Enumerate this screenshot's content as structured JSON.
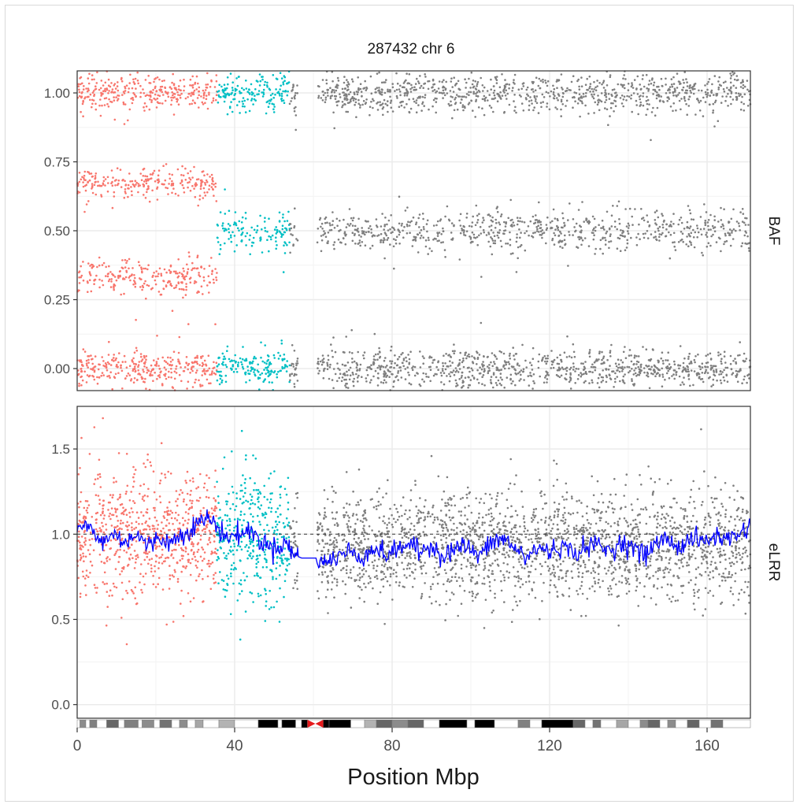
{
  "title": "287432 chr 6",
  "xlabel": "Position Mbp",
  "colors": {
    "segment_a": "#F8766D",
    "segment_b": "#00BFC4",
    "segment_c": "#7F7F7F",
    "smooth_line": "#0000FF",
    "centromere": "#E41A1C",
    "grid": "#EBEBEB",
    "panel_border": "#333333"
  },
  "chart_data": [
    {
      "type": "scatter",
      "strip_label": "BAF",
      "xlim": [
        0,
        171
      ],
      "ylim": [
        -0.08,
        1.08
      ],
      "x_ticks": [
        0,
        40,
        80,
        120,
        160
      ],
      "x_tick_labels": [
        "0",
        "40",
        "80",
        "120",
        "160"
      ],
      "y_ticks": [
        0.0,
        0.25,
        0.5,
        0.75,
        1.0
      ],
      "y_tick_labels": [
        "0.00",
        "0.25",
        "0.50",
        "0.75",
        "1.00"
      ],
      "grid": true,
      "gap": [
        56,
        61
      ],
      "series": [
        {
          "color_key": "segment_a",
          "x_range": [
            0,
            35.5
          ],
          "bands": [
            0.0,
            0.33,
            0.67,
            1.0
          ],
          "spread": 0.03
        },
        {
          "color_key": "segment_b",
          "x_range": [
            35.5,
            54
          ],
          "bands": [
            0.0,
            0.5,
            1.0
          ],
          "spread": 0.035
        },
        {
          "color_key": "segment_c",
          "x_range": [
            54,
            171
          ],
          "bands": [
            0.0,
            0.5,
            1.0
          ],
          "spread": 0.035
        }
      ]
    },
    {
      "type": "scatter",
      "strip_label": "eLRR",
      "xlim": [
        0,
        171
      ],
      "ylim": [
        -0.08,
        1.75
      ],
      "x_ticks": [
        0,
        40,
        80,
        120,
        160
      ],
      "x_tick_labels": [
        "0",
        "40",
        "80",
        "120",
        "160"
      ],
      "y_ticks": [
        0.0,
        0.5,
        1.0,
        1.5
      ],
      "y_tick_labels": [
        "0.0",
        "0.5",
        "1.0",
        "1.5"
      ],
      "grid": true,
      "reference_line": 1.0,
      "gap": [
        56,
        61
      ],
      "series": [
        {
          "color_key": "segment_a",
          "x_range": [
            0,
            35.5
          ],
          "mean": 1.0,
          "spread": 0.19
        },
        {
          "color_key": "segment_b",
          "x_range": [
            35.5,
            54
          ],
          "mean": 0.97,
          "spread": 0.2
        },
        {
          "color_key": "segment_c",
          "x_range": [
            54,
            171
          ],
          "mean": 0.93,
          "spread": 0.16
        }
      ],
      "smooth": [
        [
          0,
          1.02
        ],
        [
          3,
          1.05
        ],
        [
          6,
          0.95
        ],
        [
          9,
          1.0
        ],
        [
          12,
          0.96
        ],
        [
          15,
          1.0
        ],
        [
          18,
          0.93
        ],
        [
          21,
          0.98
        ],
        [
          24,
          0.95
        ],
        [
          27,
          1.01
        ],
        [
          30,
          1.05
        ],
        [
          33,
          1.1
        ],
        [
          35,
          1.06
        ],
        [
          38,
          0.98
        ],
        [
          41,
          1.0
        ],
        [
          44,
          1.02
        ],
        [
          47,
          0.95
        ],
        [
          50,
          0.92
        ],
        [
          53,
          0.95
        ],
        [
          55,
          0.88
        ],
        [
          57,
          0.86
        ],
        [
          61,
          0.86
        ],
        [
          63,
          0.83
        ],
        [
          66,
          0.87
        ],
        [
          69,
          0.9
        ],
        [
          72,
          0.86
        ],
        [
          75,
          0.92
        ],
        [
          78,
          0.88
        ],
        [
          81,
          0.9
        ],
        [
          84,
          0.95
        ],
        [
          87,
          0.89
        ],
        [
          90,
          0.94
        ],
        [
          93,
          0.87
        ],
        [
          96,
          0.92
        ],
        [
          99,
          0.93
        ],
        [
          102,
          0.87
        ],
        [
          105,
          0.94
        ],
        [
          108,
          0.98
        ],
        [
          111,
          0.92
        ],
        [
          114,
          0.86
        ],
        [
          117,
          0.92
        ],
        [
          120,
          0.9
        ],
        [
          123,
          0.93
        ],
        [
          126,
          0.89
        ],
        [
          129,
          0.92
        ],
        [
          132,
          0.94
        ],
        [
          135,
          0.9
        ],
        [
          138,
          0.95
        ],
        [
          141,
          0.93
        ],
        [
          144,
          0.87
        ],
        [
          147,
          0.95
        ],
        [
          150,
          0.97
        ],
        [
          153,
          0.92
        ],
        [
          156,
          0.98
        ],
        [
          159,
          0.95
        ],
        [
          162,
          0.99
        ],
        [
          165,
          0.97
        ],
        [
          168,
          1.0
        ],
        [
          171,
          1.05
        ]
      ]
    }
  ],
  "ideogram": {
    "xlim": [
      0,
      171
    ],
    "centromere": [
      58.5,
      62.5
    ],
    "bands": [
      [
        0,
        0.7,
        0
      ],
      [
        0.7,
        2.2,
        0.45
      ],
      [
        2.2,
        3.2,
        0
      ],
      [
        3.2,
        5,
        0.5
      ],
      [
        5,
        7.5,
        0
      ],
      [
        7.5,
        10.5,
        0.6
      ],
      [
        10.5,
        12,
        0
      ],
      [
        12,
        15.5,
        0.5
      ],
      [
        15.5,
        16.5,
        0
      ],
      [
        16.5,
        19.5,
        0.45
      ],
      [
        19.5,
        21,
        0
      ],
      [
        21,
        24,
        0.55
      ],
      [
        24,
        26,
        0
      ],
      [
        26,
        28,
        0.45
      ],
      [
        28,
        30,
        0
      ],
      [
        30,
        32,
        0.35
      ],
      [
        32,
        36,
        0
      ],
      [
        36,
        40,
        0.3
      ],
      [
        40,
        46,
        0
      ],
      [
        46,
        51,
        1
      ],
      [
        51,
        52,
        0
      ],
      [
        52,
        55.5,
        1
      ],
      [
        55.5,
        57,
        0
      ],
      [
        57,
        58.5,
        1
      ],
      [
        58.5,
        62.5,
        0
      ],
      [
        62.5,
        64,
        1
      ],
      [
        64,
        69.5,
        1
      ],
      [
        69.5,
        73,
        0
      ],
      [
        73,
        76,
        0.3
      ],
      [
        76,
        80,
        0.6
      ],
      [
        80,
        84,
        0.45
      ],
      [
        84,
        88,
        0.6
      ],
      [
        88,
        92,
        0
      ],
      [
        92,
        99,
        1
      ],
      [
        99,
        101,
        0
      ],
      [
        101,
        106,
        1
      ],
      [
        106,
        112,
        0
      ],
      [
        112,
        115,
        0.5
      ],
      [
        115,
        118,
        0
      ],
      [
        118,
        126,
        1
      ],
      [
        126,
        129,
        0.6
      ],
      [
        129,
        131,
        0
      ],
      [
        131,
        133,
        0.55
      ],
      [
        133,
        137,
        0
      ],
      [
        137,
        140,
        0.35
      ],
      [
        140,
        143,
        0
      ],
      [
        143,
        145,
        0.45
      ],
      [
        145,
        148,
        0.6
      ],
      [
        148,
        150,
        0
      ],
      [
        150,
        152,
        0.45
      ],
      [
        152,
        155,
        0
      ],
      [
        155,
        158,
        0.6
      ],
      [
        158,
        161,
        0
      ],
      [
        161,
        164,
        0.55
      ],
      [
        164,
        171,
        0
      ]
    ]
  }
}
